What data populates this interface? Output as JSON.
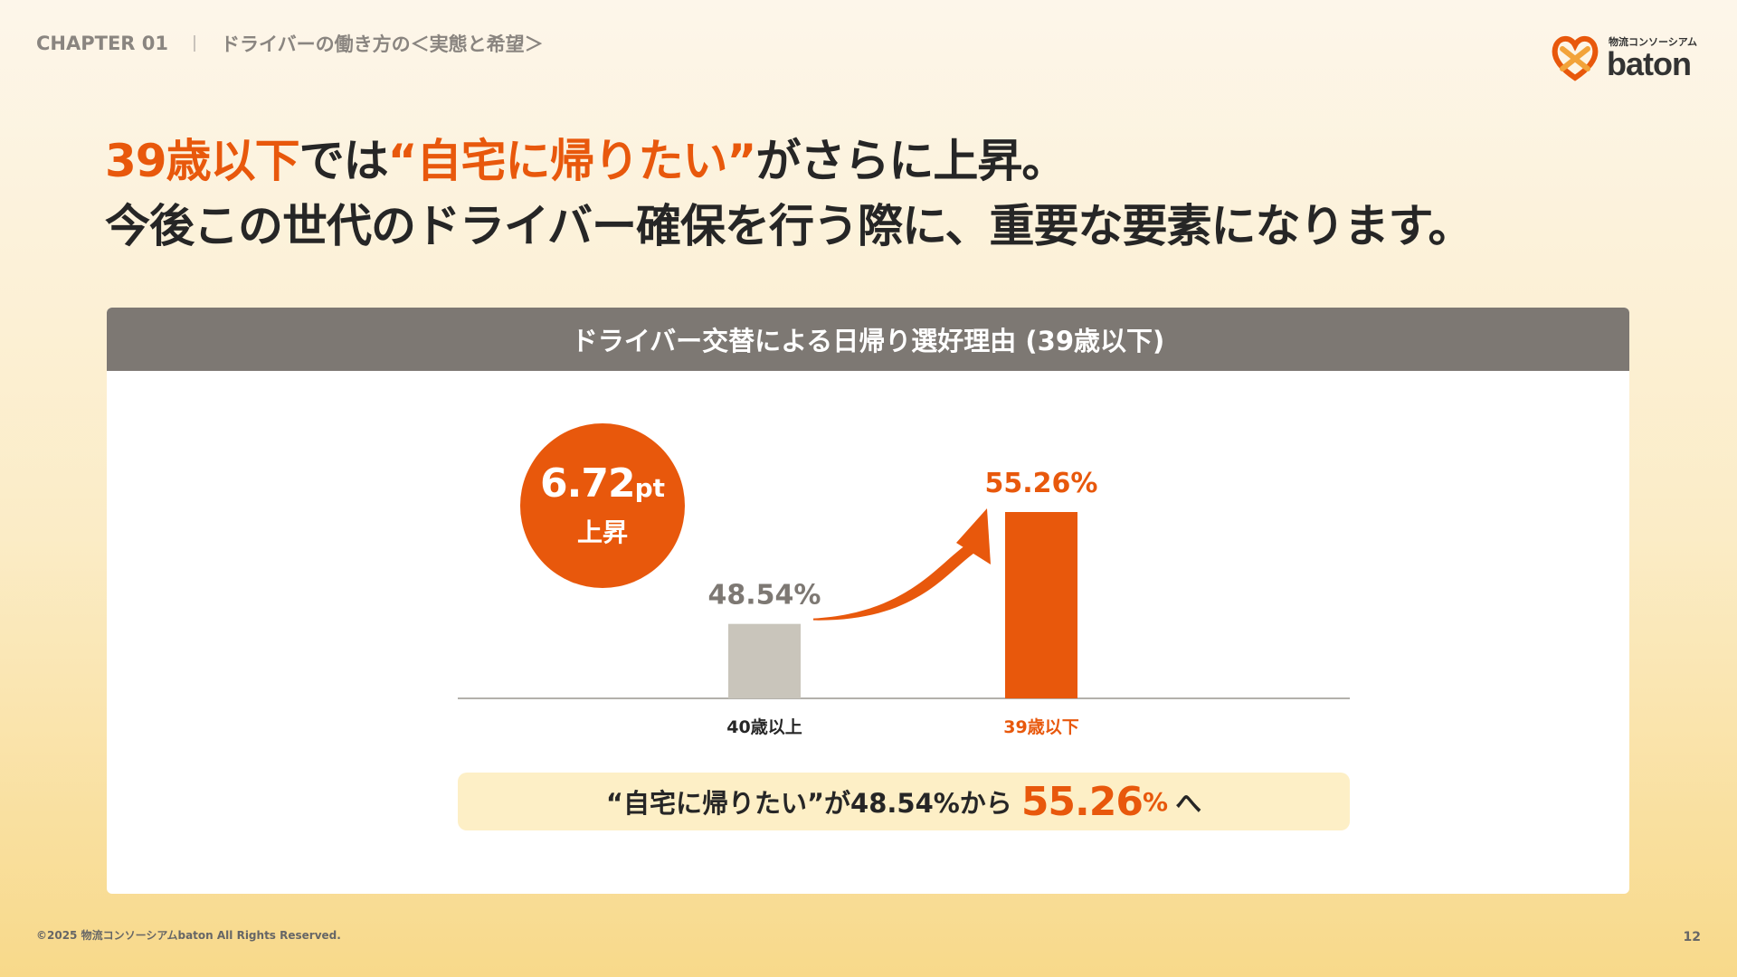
{
  "header": {
    "chapter": "CHAPTER 01",
    "section": "ドライバーの働き方の＜実態と希望＞"
  },
  "logo": {
    "small_text": "物流コンソーシアム",
    "wordmark": "baton"
  },
  "headline": {
    "line1_orange": "39歳以下",
    "line1_dark_a": "では",
    "line1_orange_b": "“自宅に帰りたい”",
    "line1_dark_b": "がさらに上昇。",
    "line2": "今後この世代のドライバー確保を行う際に、重要な要素になります。"
  },
  "panel": {
    "heading": "ドライバー交替による日帰り選好理由 (39歳以下)"
  },
  "badge": {
    "value": "6.72",
    "unit": "pt",
    "label": "上昇"
  },
  "chart_data": {
    "type": "bar",
    "categories": [
      "40歳以上",
      "39歳以下"
    ],
    "values": [
      48.54,
      55.26
    ],
    "value_labels": [
      "48.54%",
      "55.26%"
    ],
    "ylim": [
      0,
      60
    ],
    "colors": [
      "#c9c5bb",
      "#e8580c"
    ],
    "label_colors": [
      "#7d7873",
      "#e8580c"
    ],
    "category_label_colors": [
      "#262626",
      "#e8580c"
    ],
    "annotation": "arrow-up-from-first-to-second"
  },
  "summary": {
    "prefix": "“自宅に帰りたい”が48.54%から",
    "big_value": "55.26",
    "pct": "%",
    "suffix": "へ"
  },
  "footer": {
    "copyright": "©2025 物流コンソーシアムbaton All Rights Reserved.",
    "page": "12"
  },
  "colors": {
    "accent": "#e8580c",
    "panel_header": "#7d7873",
    "summary_bg": "#fdefc6"
  }
}
